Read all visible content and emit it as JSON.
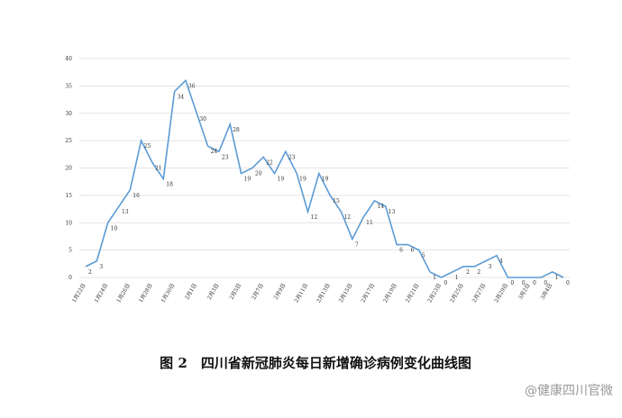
{
  "chart_data": {
    "type": "line",
    "title": "图 2　四川省新冠肺炎每日新增确诊病例变化曲线图",
    "watermark": "@健康四川官微",
    "categories": [
      "1月22日",
      null,
      "1月24日",
      null,
      "1月26日",
      null,
      "1月28日",
      null,
      "1月30日",
      null,
      "2月1日",
      null,
      "2月3日",
      null,
      "2月5日",
      null,
      "2月7日",
      null,
      "2月9日",
      null,
      "2月11日",
      null,
      "2月13日",
      null,
      "2月15日",
      null,
      "2月17日",
      null,
      "2月19日",
      null,
      "2月21日",
      null,
      "2月23日",
      null,
      "2月25日",
      null,
      "2月27日",
      null,
      "2月29日",
      null,
      "3月2日",
      null,
      "3月4日",
      null
    ],
    "series": [
      {
        "name": "每日新增确诊",
        "color": "#5b9bd5",
        "values": [
          2,
          3,
          10,
          13,
          16,
          25,
          21,
          18,
          34,
          36,
          30,
          24,
          23,
          28,
          19,
          20,
          22,
          19,
          23,
          19,
          12,
          19,
          15,
          12,
          7,
          11,
          14,
          13,
          6,
          6,
          5,
          1,
          0,
          1,
          2,
          2,
          3,
          4,
          0,
          0,
          0,
          0,
          1,
          0
        ]
      }
    ],
    "ylim": [
      0,
      40
    ],
    "yticks": [
      0,
      5,
      10,
      15,
      20,
      25,
      30,
      35,
      40
    ],
    "grid": true
  }
}
